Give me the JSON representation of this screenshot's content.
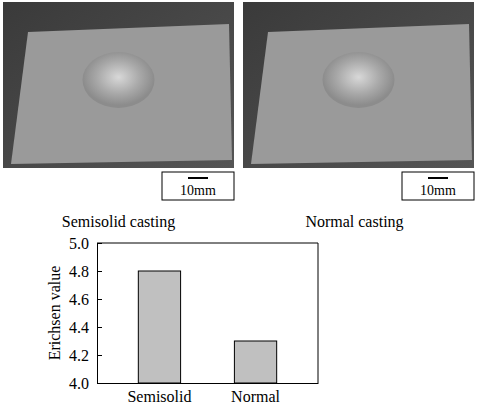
{
  "chart_data": {
    "type": "bar",
    "categories": [
      "Semisolid",
      "Normal"
    ],
    "values": [
      4.8,
      4.3
    ],
    "color": "#c0c0c0",
    "ylabel": "Erichsen value",
    "ylim": [
      4,
      5
    ],
    "yticks": [
      {
        "value": 4,
        "label": "4.0"
      },
      {
        "value": 4.2,
        "label": "4.2"
      },
      {
        "value": 4.4,
        "label": "4.4"
      },
      {
        "value": 4.6,
        "label": "4.6"
      },
      {
        "value": 4.8,
        "label": "4.8"
      },
      {
        "value": 5,
        "label": "5.0"
      }
    ],
    "grid": false
  },
  "photos": [
    {
      "caption": "Semisolid casting",
      "scale_bar": "10mm"
    },
    {
      "caption": "Normal casting",
      "scale_bar": "10mm"
    }
  ]
}
